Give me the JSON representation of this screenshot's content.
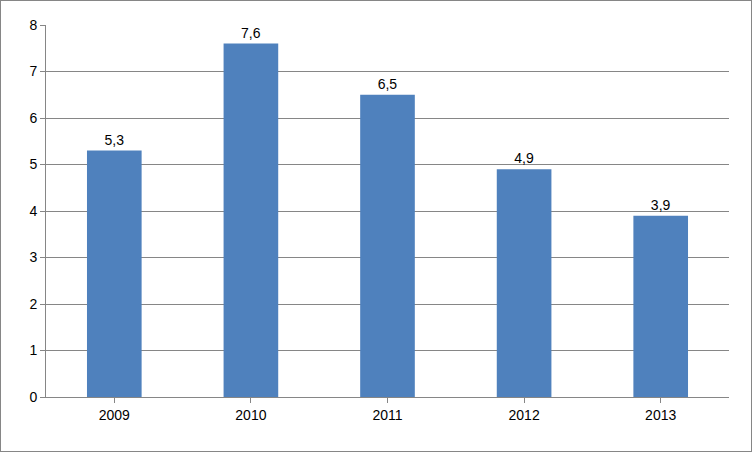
{
  "chart_data": {
    "type": "bar",
    "categories": [
      "2009",
      "2010",
      "2011",
      "2012",
      "2013"
    ],
    "values": [
      5.3,
      7.6,
      6.5,
      4.9,
      3.9
    ],
    "value_labels": [
      "5,3",
      "7,6",
      "6,5",
      "4,9",
      "3,9"
    ],
    "color": "#4f81bd",
    "ylim": [
      0,
      8
    ],
    "yticks": [
      0,
      1,
      2,
      3,
      4,
      5,
      6,
      7,
      8
    ],
    "grid": true,
    "data_labels": true
  }
}
